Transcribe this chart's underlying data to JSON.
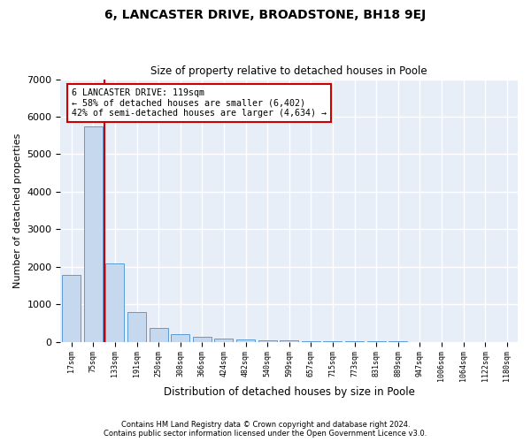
{
  "title": "6, LANCASTER DRIVE, BROADSTONE, BH18 9EJ",
  "subtitle": "Size of property relative to detached houses in Poole",
  "xlabel": "Distribution of detached houses by size in Poole",
  "ylabel": "Number of detached properties",
  "bar_color": "#c5d8ee",
  "bar_edge_color": "#5b9bd5",
  "background_color": "#e8eef8",
  "grid_color": "#ffffff",
  "categories": [
    "17sqm",
    "75sqm",
    "133sqm",
    "191sqm",
    "250sqm",
    "308sqm",
    "366sqm",
    "424sqm",
    "482sqm",
    "540sqm",
    "599sqm",
    "657sqm",
    "715sqm",
    "773sqm",
    "831sqm",
    "889sqm",
    "947sqm",
    "1006sqm",
    "1064sqm",
    "1122sqm",
    "1180sqm"
  ],
  "values": [
    1780,
    5750,
    2080,
    800,
    370,
    200,
    130,
    80,
    55,
    40,
    30,
    20,
    15,
    10,
    8,
    6,
    5,
    4,
    3,
    2,
    2
  ],
  "red_line_color": "#cc0000",
  "annotation_text": "6 LANCASTER DRIVE: 119sqm\n← 58% of detached houses are smaller (6,402)\n42% of semi-detached houses are larger (4,634) →",
  "annotation_box_color": "#ffffff",
  "annotation_edge_color": "#cc0000",
  "ylim": [
    0,
    7000
  ],
  "yticks": [
    0,
    1000,
    2000,
    3000,
    4000,
    5000,
    6000,
    7000
  ],
  "footer1": "Contains HM Land Registry data © Crown copyright and database right 2024.",
  "footer2": "Contains public sector information licensed under the Open Government Licence v3.0."
}
